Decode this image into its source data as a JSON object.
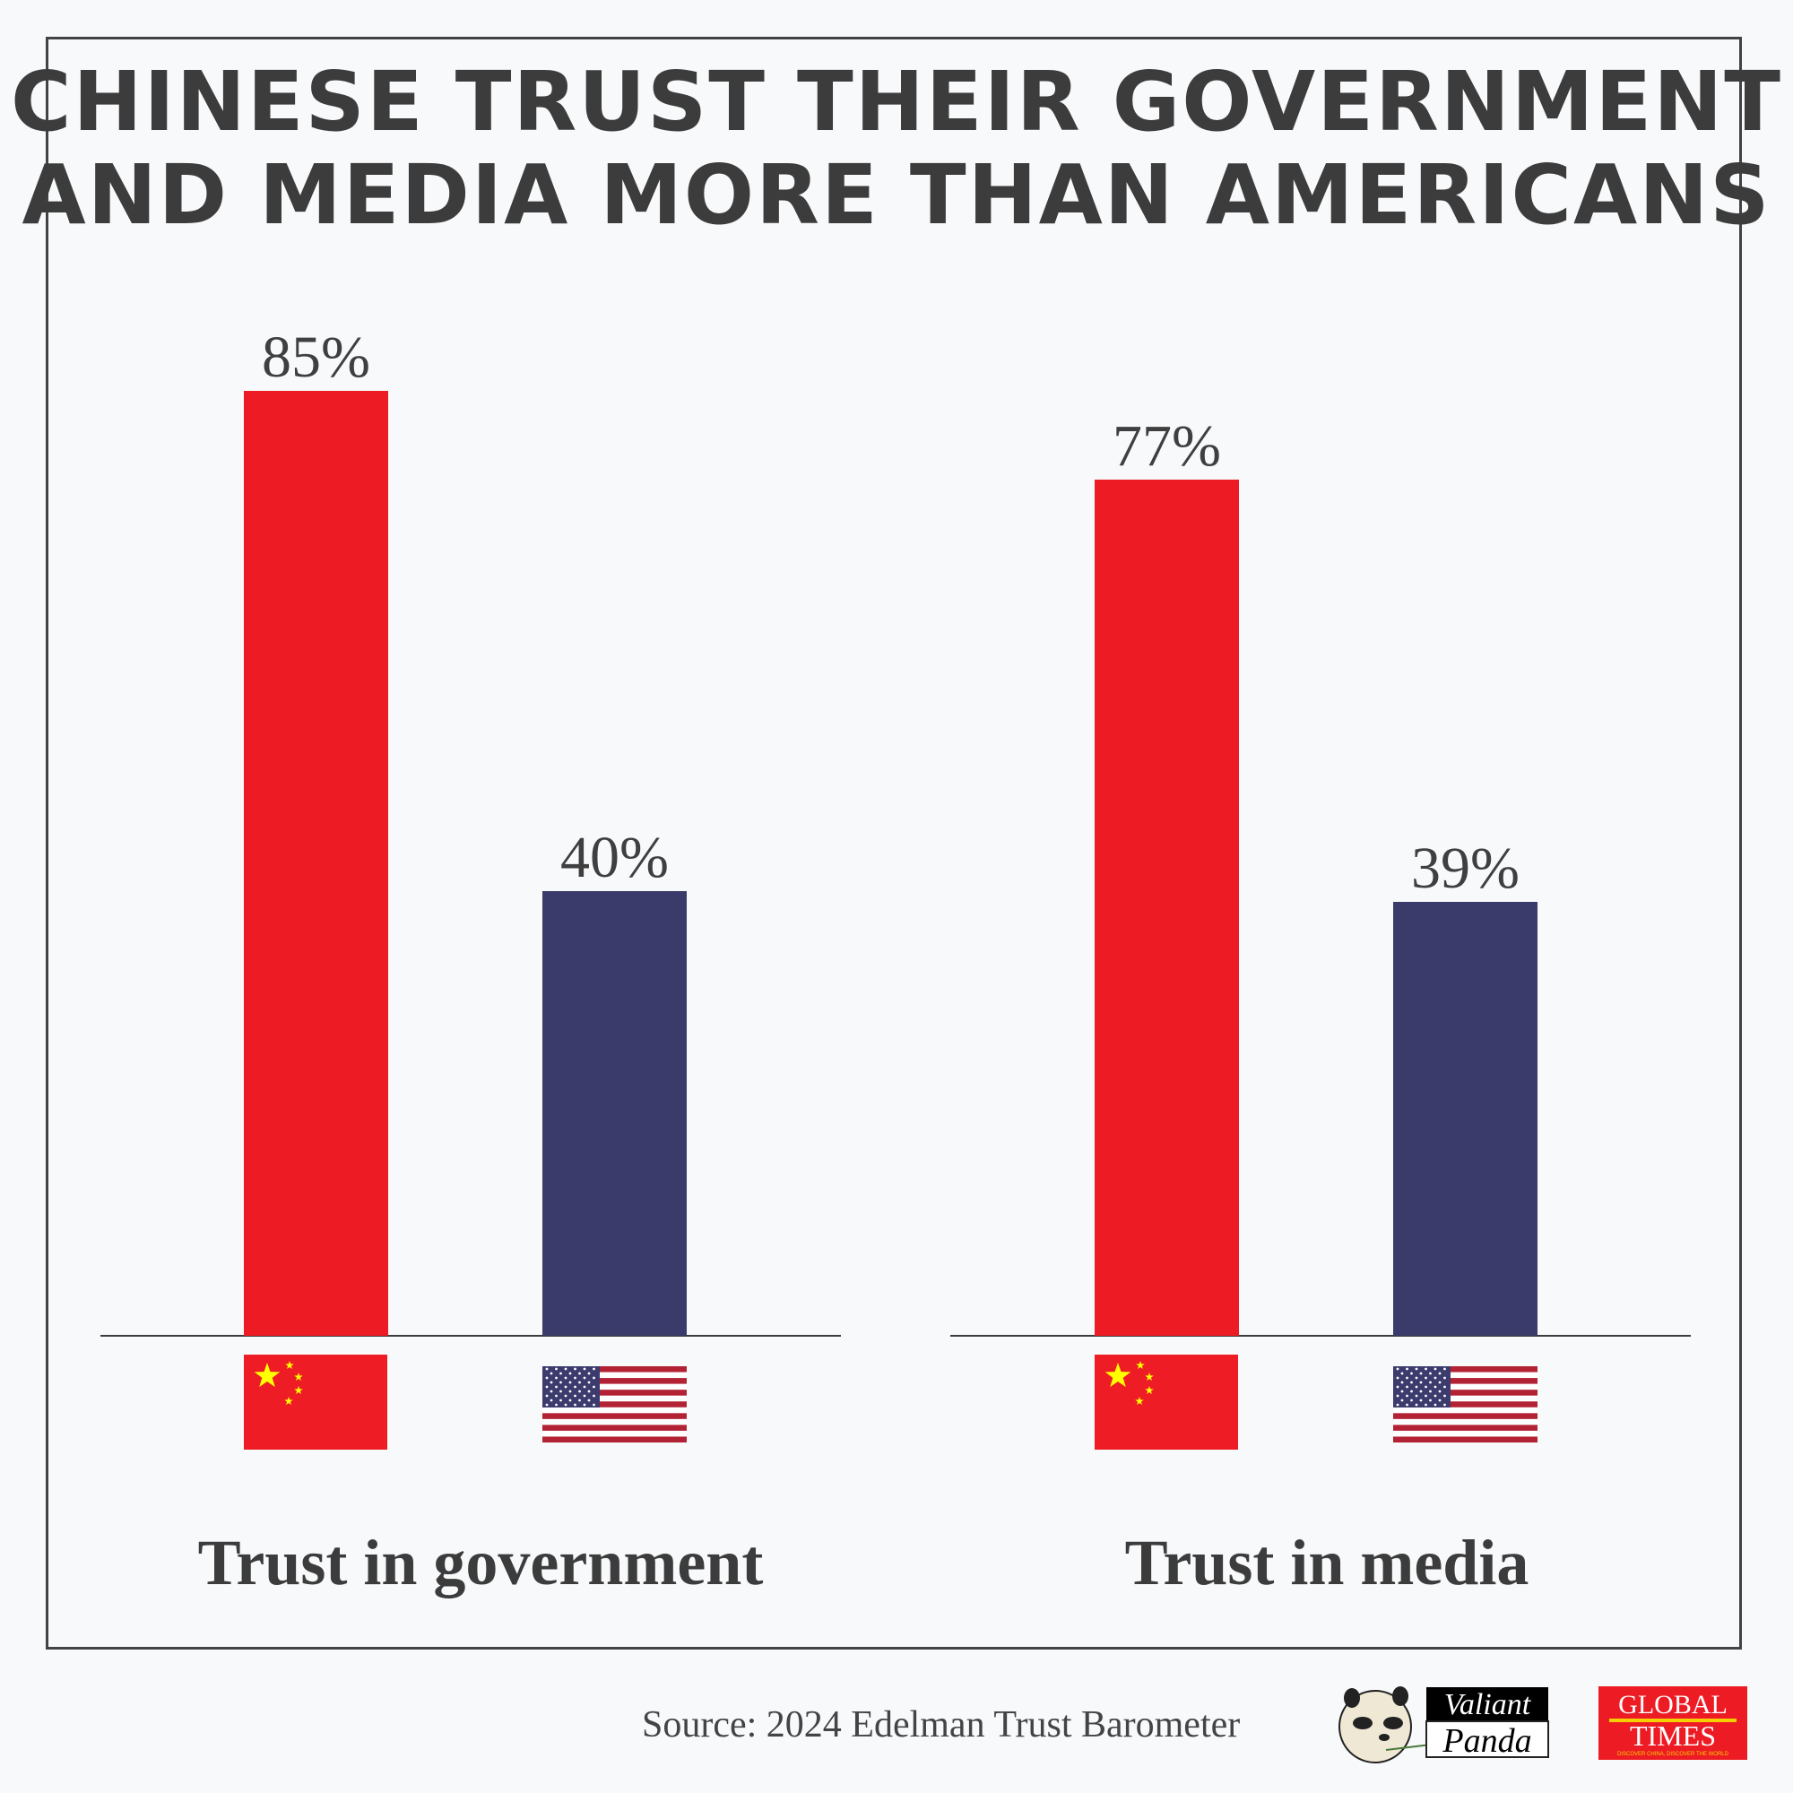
{
  "chart_data": {
    "type": "bar",
    "title": [
      "CHINESE TRUST THEIR GOVERNMENT",
      "AND MEDIA MORE THAN AMERICANS"
    ],
    "groups": [
      {
        "label": "Trust in government",
        "series": [
          {
            "name": "China",
            "value": 85,
            "label": "85%"
          },
          {
            "name": "United States",
            "value": 40,
            "label": "40%"
          }
        ]
      },
      {
        "label": "Trust in media",
        "series": [
          {
            "name": "China",
            "value": 77,
            "label": "77%"
          },
          {
            "name": "United States",
            "value": 39,
            "label": "39%"
          }
        ]
      }
    ],
    "unit": "%",
    "ylim": [
      0,
      100
    ],
    "grid": false,
    "legend": "flags below bars",
    "colors": {
      "China": "#ed1c24",
      "United States": "#3b3b6b"
    }
  },
  "footer": {
    "source": "Source: 2024 Edelman Trust Barometer",
    "logo_panda": [
      "Valiant",
      "Panda"
    ],
    "logo_gt": [
      "GLOBAL",
      "TIMES",
      "DISCOVER CHINA, DISCOVER THE WORLD"
    ]
  }
}
